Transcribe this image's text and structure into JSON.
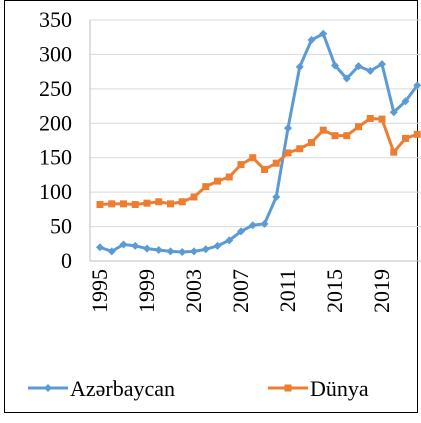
{
  "chart_data": {
    "type": "line",
    "categories": [
      "1995",
      null,
      null,
      null,
      "1999",
      null,
      null,
      null,
      "2003",
      null,
      null,
      null,
      "2007",
      null,
      null,
      null,
      "2011",
      null,
      null,
      null,
      "2015",
      null,
      null,
      null,
      "2019",
      null,
      null,
      null
    ],
    "series": [
      {
        "name": "Azərbaycan",
        "color": "#5b9bd5",
        "marker": "diamond",
        "values": [
          20,
          14,
          24,
          22,
          18,
          16,
          14,
          13,
          14,
          17,
          22,
          30,
          43,
          52,
          54,
          93,
          193,
          282,
          321,
          330,
          284,
          265,
          283,
          276,
          286,
          216,
          232,
          255
        ]
      },
      {
        "name": "Dünya",
        "color": "#ed7d31",
        "marker": "square",
        "values": [
          82,
          83,
          83,
          82,
          84,
          86,
          83,
          86,
          93,
          108,
          116,
          122,
          140,
          150,
          133,
          142,
          157,
          163,
          172,
          190,
          182,
          182,
          195,
          207,
          206,
          158,
          178,
          184
        ]
      }
    ],
    "ylim": [
      0,
      350
    ],
    "yticks": [
      0,
      50,
      100,
      150,
      200,
      250,
      300,
      350
    ],
    "grid": true,
    "legend": "bottom"
  }
}
